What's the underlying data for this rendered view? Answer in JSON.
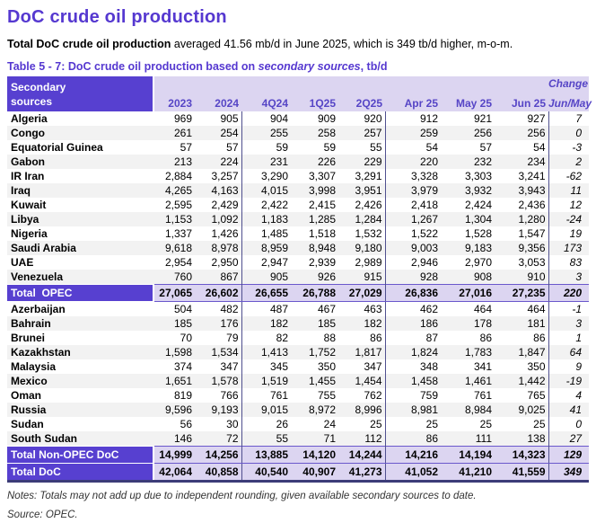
{
  "colors": {
    "accent_purple": "#5740D0",
    "lavender_band": "#DCD5F1",
    "row_stripe": "#F2F2F2",
    "group_divider": "#50508F",
    "total_row_border": "#6A58CC",
    "table_bottom_border": "#3C3C78"
  },
  "header": {
    "title": "DoC crude oil production",
    "intro_bold": "Total DoC crude oil production",
    "intro_rest": " averaged 41.56 mb/d in June 2025, which is 349 tb/d higher, m-o-m.",
    "caption_prefix": "Table 5 - 7: DoC crude oil production based on ",
    "caption_italic": "secondary sources",
    "caption_suffix": ", tb/d"
  },
  "table": {
    "label_header_line1": "Secondary",
    "label_header_line2": "sources",
    "change_header_line1": "Change",
    "change_header_line2": "Jun/May",
    "columns": [
      "2023",
      "2024",
      "4Q24",
      "1Q25",
      "2Q25",
      "Apr 25",
      "May 25",
      "Jun 25"
    ],
    "rows": [
      {
        "label": "Algeria",
        "type": "data",
        "values": [
          "969",
          "905",
          "904",
          "909",
          "920",
          "912",
          "921",
          "927"
        ],
        "change": "7"
      },
      {
        "label": "Congo",
        "type": "data",
        "values": [
          "261",
          "254",
          "255",
          "258",
          "257",
          "259",
          "256",
          "256"
        ],
        "change": "0"
      },
      {
        "label": "Equatorial Guinea",
        "type": "data",
        "values": [
          "57",
          "57",
          "59",
          "59",
          "55",
          "54",
          "57",
          "54"
        ],
        "change": "-3"
      },
      {
        "label": "Gabon",
        "type": "data",
        "values": [
          "213",
          "224",
          "231",
          "226",
          "229",
          "220",
          "232",
          "234"
        ],
        "change": "2"
      },
      {
        "label": "IR Iran",
        "type": "data",
        "values": [
          "2,884",
          "3,257",
          "3,290",
          "3,307",
          "3,291",
          "3,328",
          "3,303",
          "3,241"
        ],
        "change": "-62"
      },
      {
        "label": "Iraq",
        "type": "data",
        "values": [
          "4,265",
          "4,163",
          "4,015",
          "3,998",
          "3,951",
          "3,979",
          "3,932",
          "3,943"
        ],
        "change": "11"
      },
      {
        "label": "Kuwait",
        "type": "data",
        "values": [
          "2,595",
          "2,429",
          "2,422",
          "2,415",
          "2,426",
          "2,418",
          "2,424",
          "2,436"
        ],
        "change": "12"
      },
      {
        "label": "Libya",
        "type": "data",
        "values": [
          "1,153",
          "1,092",
          "1,183",
          "1,285",
          "1,284",
          "1,267",
          "1,304",
          "1,280"
        ],
        "change": "-24"
      },
      {
        "label": "Nigeria",
        "type": "data",
        "values": [
          "1,337",
          "1,426",
          "1,485",
          "1,518",
          "1,532",
          "1,522",
          "1,528",
          "1,547"
        ],
        "change": "19"
      },
      {
        "label": "Saudi Arabia",
        "type": "data",
        "values": [
          "9,618",
          "8,978",
          "8,959",
          "8,948",
          "9,180",
          "9,003",
          "9,183",
          "9,356"
        ],
        "change": "173"
      },
      {
        "label": "UAE",
        "type": "data",
        "values": [
          "2,954",
          "2,950",
          "2,947",
          "2,939",
          "2,989",
          "2,946",
          "2,970",
          "3,053"
        ],
        "change": "83"
      },
      {
        "label": "Venezuela",
        "type": "data",
        "values": [
          "760",
          "867",
          "905",
          "926",
          "915",
          "928",
          "908",
          "910"
        ],
        "change": "3"
      },
      {
        "label": "Total  OPEC",
        "type": "total",
        "values": [
          "27,065",
          "26,602",
          "26,655",
          "26,788",
          "27,029",
          "26,836",
          "27,016",
          "27,235"
        ],
        "change": "220"
      },
      {
        "label": "Azerbaijan",
        "type": "data",
        "values": [
          "504",
          "482",
          "487",
          "467",
          "463",
          "462",
          "464",
          "464"
        ],
        "change": "-1"
      },
      {
        "label": "Bahrain",
        "type": "data",
        "values": [
          "185",
          "176",
          "182",
          "185",
          "182",
          "186",
          "178",
          "181"
        ],
        "change": "3"
      },
      {
        "label": "Brunei",
        "type": "data",
        "values": [
          "70",
          "79",
          "82",
          "88",
          "86",
          "87",
          "86",
          "86"
        ],
        "change": "1"
      },
      {
        "label": "Kazakhstan",
        "type": "data",
        "values": [
          "1,598",
          "1,534",
          "1,413",
          "1,752",
          "1,817",
          "1,824",
          "1,783",
          "1,847"
        ],
        "change": "64"
      },
      {
        "label": "Malaysia",
        "type": "data",
        "values": [
          "374",
          "347",
          "345",
          "350",
          "347",
          "348",
          "341",
          "350"
        ],
        "change": "9"
      },
      {
        "label": "Mexico",
        "type": "data",
        "values": [
          "1,651",
          "1,578",
          "1,519",
          "1,455",
          "1,454",
          "1,458",
          "1,461",
          "1,442"
        ],
        "change": "-19"
      },
      {
        "label": "Oman",
        "type": "data",
        "values": [
          "819",
          "766",
          "761",
          "755",
          "762",
          "759",
          "761",
          "765"
        ],
        "change": "4"
      },
      {
        "label": "Russia",
        "type": "data",
        "values": [
          "9,596",
          "9,193",
          "9,015",
          "8,972",
          "8,996",
          "8,981",
          "8,984",
          "9,025"
        ],
        "change": "41"
      },
      {
        "label": "Sudan",
        "type": "data",
        "values": [
          "56",
          "30",
          "26",
          "24",
          "25",
          "25",
          "25",
          "25"
        ],
        "change": "0"
      },
      {
        "label": "South Sudan",
        "type": "data",
        "values": [
          "146",
          "72",
          "55",
          "71",
          "112",
          "86",
          "111",
          "138"
        ],
        "change": "27"
      },
      {
        "label": "Total Non-OPEC DoC",
        "type": "total",
        "values": [
          "14,999",
          "14,256",
          "13,885",
          "14,120",
          "14,244",
          "14,216",
          "14,194",
          "14,323"
        ],
        "change": "129"
      },
      {
        "label": "Total DoC",
        "type": "total",
        "values": [
          "42,064",
          "40,858",
          "40,540",
          "40,907",
          "41,273",
          "41,052",
          "41,210",
          "41,559"
        ],
        "change": "349"
      }
    ]
  },
  "footer": {
    "notes": "Notes: Totals may not add up due to independent rounding, given available secondary sources to date.",
    "source": "Source: OPEC."
  }
}
